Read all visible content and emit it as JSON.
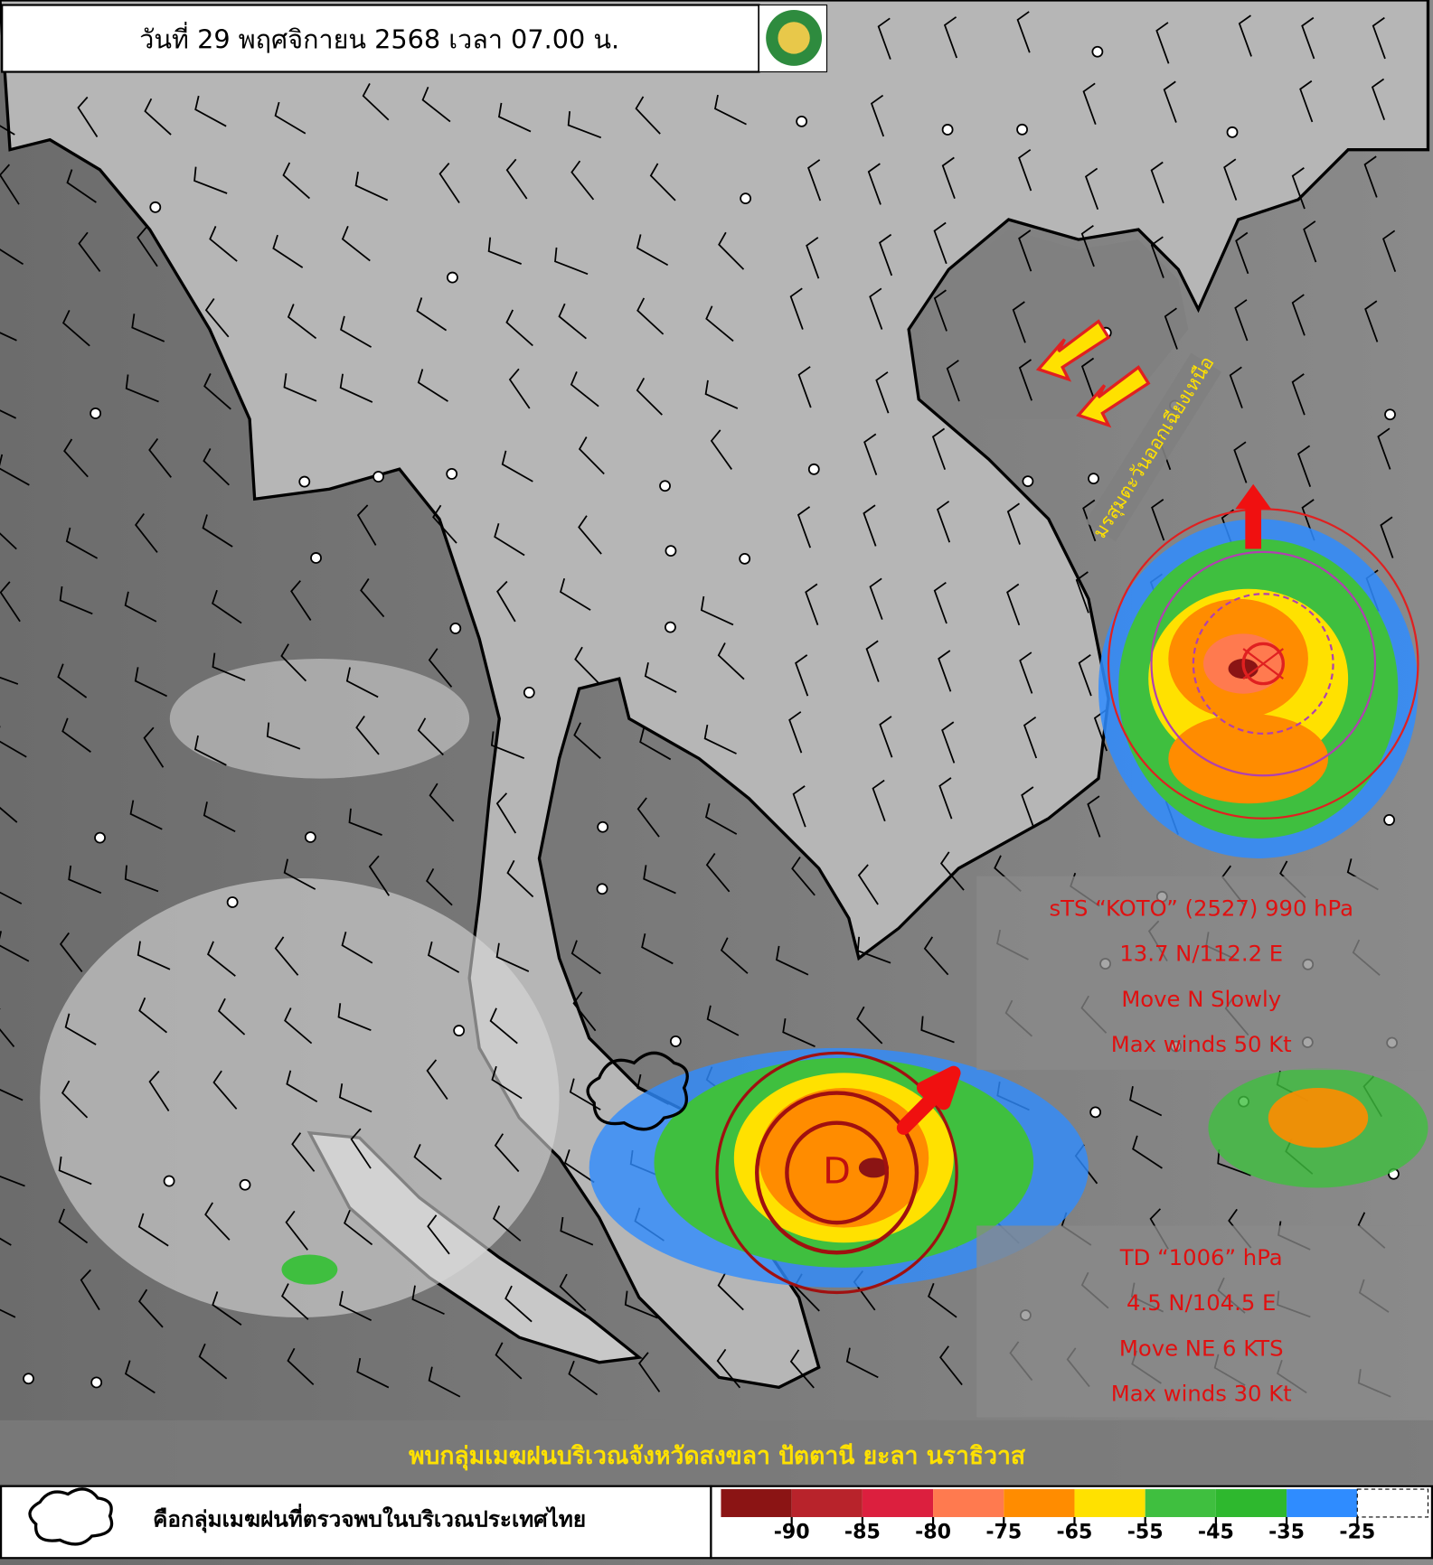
{
  "header": {
    "title": "วันที่ 29 พฤศจิกายน 2568 เวลา 07.00 น."
  },
  "annotations": {
    "monsoon": "มรสุมตะวันออกเฉียงเหนือ",
    "td_symbol": "D",
    "koto": [
      "sTS “KOTO” (2527) 990 hPa",
      "13.7 N/112.2 E",
      "Move N Slowly",
      "Max winds 50 Kt"
    ],
    "td": [
      "TD “1006” hPa",
      "4.5 N/104.5 E",
      "Move NE 6 KTS",
      "Max winds 30 Kt"
    ],
    "banner": "พบกลุ่มเมฆฝนบริเวณจังหวัดสงขลา ปัตตานี ยะลา นราธิวาส"
  },
  "legend": {
    "cloud_text": "คือกลุ่มเมฆฝนที่ตรวจพบในบริเวณประเทศไทย",
    "colors": [
      "#8b1414",
      "#b8232b",
      "#dc1f3e",
      "#ff7a4f",
      "#ff8c00",
      "#ffe100",
      "#3fbf3f",
      "#2eb82e",
      "#2f8cff",
      "#ffffff"
    ],
    "ticks": [
      -90,
      -85,
      -80,
      -75,
      -65,
      -55,
      -45,
      -35,
      -25
    ]
  }
}
